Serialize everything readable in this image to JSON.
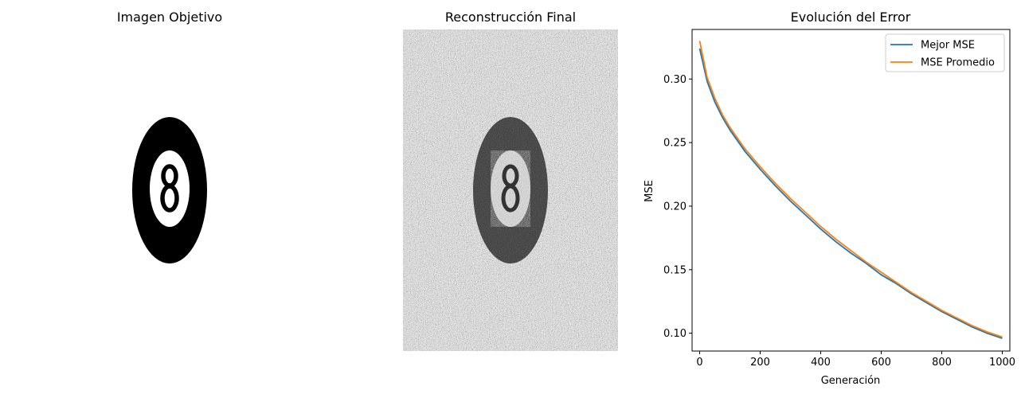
{
  "panels": {
    "target": {
      "title": "Imagen Objetivo"
    },
    "reconstruction": {
      "title": "Reconstrucción Final"
    }
  },
  "chart_data": {
    "type": "line",
    "title": "Evolución del Error",
    "xlabel": "Generación",
    "ylabel": "MSE",
    "xlim": [
      -25,
      1025
    ],
    "ylim": [
      0.086,
      0.339
    ],
    "xticks": [
      0,
      200,
      400,
      600,
      800,
      1000
    ],
    "yticks": [
      0.1,
      0.15,
      0.2,
      0.25,
      0.3
    ],
    "ytick_labels": [
      "0.10",
      "0.15",
      "0.20",
      "0.25",
      "0.30"
    ],
    "legend_position": "top-right",
    "grid": false,
    "x": [
      0,
      25,
      50,
      75,
      100,
      150,
      200,
      250,
      300,
      350,
      400,
      450,
      500,
      550,
      600,
      650,
      700,
      750,
      800,
      850,
      900,
      950,
      1000
    ],
    "series": [
      {
        "name": "Mejor MSE",
        "color": "#1f77b4",
        "values": [
          0.324,
          0.298,
          0.282,
          0.27,
          0.26,
          0.243,
          0.229,
          0.216,
          0.204,
          0.193,
          0.182,
          0.172,
          0.163,
          0.155,
          0.146,
          0.139,
          0.131,
          0.124,
          0.117,
          0.111,
          0.105,
          0.1,
          0.096
        ]
      },
      {
        "name": "MSE Promedio",
        "color": "#ff7f0e",
        "values": [
          0.33,
          0.301,
          0.285,
          0.272,
          0.262,
          0.245,
          0.231,
          0.218,
          0.206,
          0.195,
          0.184,
          0.174,
          0.165,
          0.156,
          0.148,
          0.14,
          0.132,
          0.125,
          0.118,
          0.112,
          0.106,
          0.101,
          0.097
        ]
      }
    ]
  }
}
